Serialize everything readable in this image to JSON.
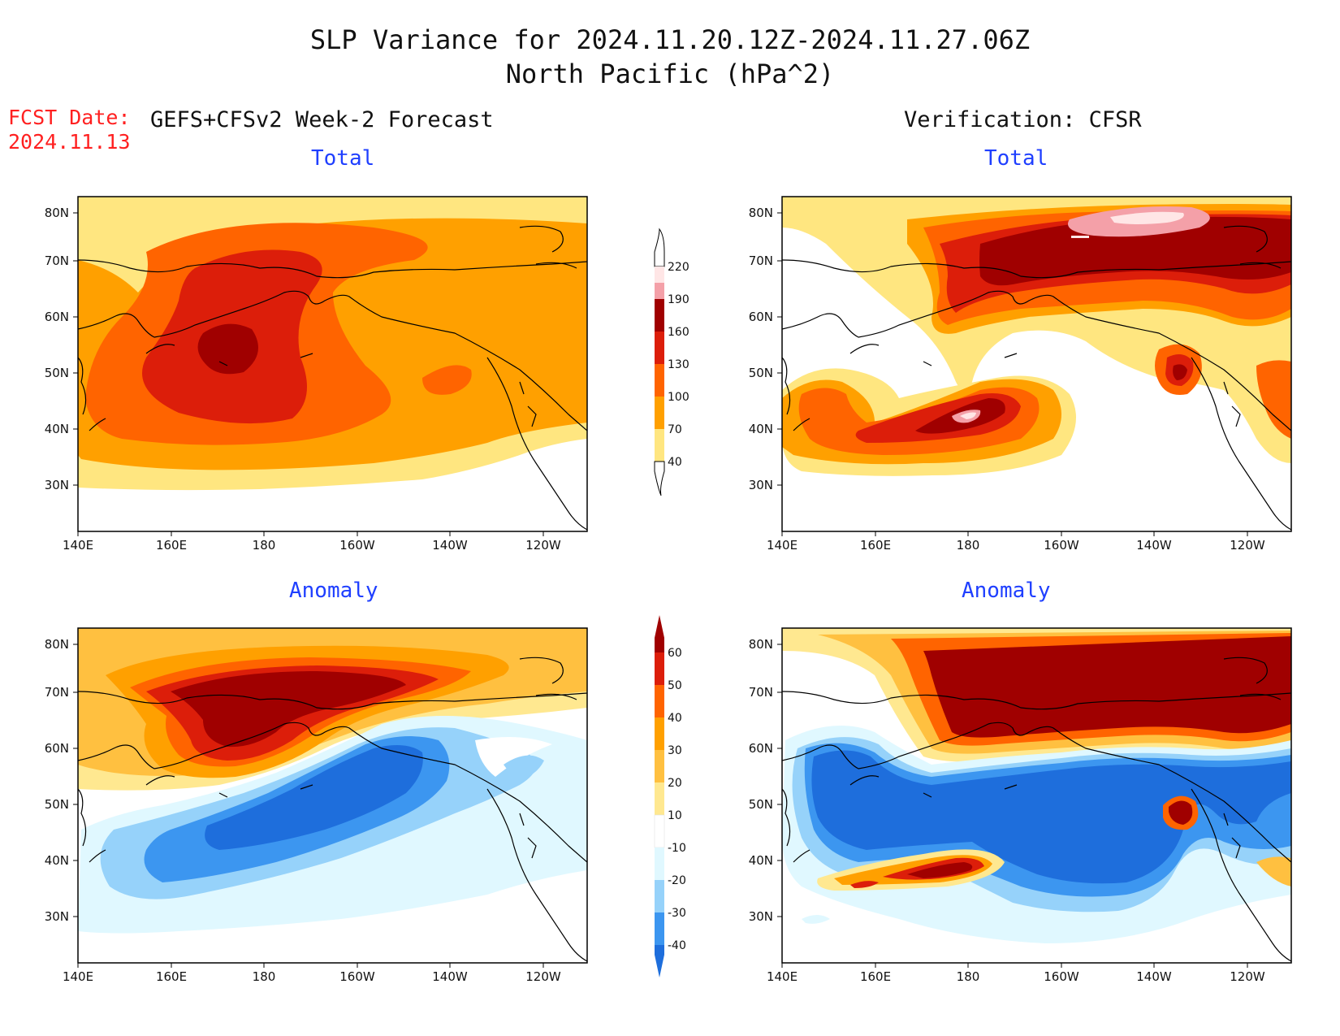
{
  "title": {
    "line1": "SLP Variance for 2024.11.20.12Z-2024.11.27.06Z",
    "line2": "North Pacific (hPa^2)"
  },
  "fcst_date": {
    "label": "FCST Date:",
    "value": "2024.11.13"
  },
  "columns": {
    "left": "GEFS+CFSv2 Week-2 Forecast",
    "right": "Verification: CFSR"
  },
  "panels": [
    {
      "title": "Total",
      "source": "forecast",
      "field": "total"
    },
    {
      "title": "Total",
      "source": "verification",
      "field": "total"
    },
    {
      "title": "Anomaly",
      "source": "forecast",
      "field": "anomaly"
    },
    {
      "title": "Anomaly",
      "source": "verification",
      "field": "anomaly"
    }
  ],
  "axes": {
    "lon_ticks": [
      "140E",
      "160E",
      "180",
      "160W",
      "140W",
      "120W"
    ],
    "lat_ticks": [
      "30N",
      "40N",
      "50N",
      "60N",
      "70N",
      "80N"
    ]
  },
  "colorbars": {
    "total": {
      "labels": [
        "220",
        "190",
        "160",
        "130",
        "100",
        "70",
        "40"
      ],
      "colors": [
        "#ffe6e6",
        "#f4a0a8",
        "#a00000",
        "#dc1e0a",
        "#ff6400",
        "#ffa000",
        "#ffe680"
      ]
    },
    "anomaly": {
      "labels": [
        "60",
        "50",
        "40",
        "30",
        "20",
        "10",
        "-10",
        "-20",
        "-30",
        "-40"
      ],
      "colors": [
        "#a00000",
        "#dc1e0a",
        "#ff6400",
        "#ffa000",
        "#ffc040",
        "#ffe890",
        "#ffffff",
        "#e0f8ff",
        "#96d2fa",
        "#3c96f0",
        "#1e6edc"
      ]
    }
  },
  "colors": {
    "title_text": "#111111",
    "fcst_text": "#ff2020",
    "panel_title_text": "#1f3fff"
  }
}
